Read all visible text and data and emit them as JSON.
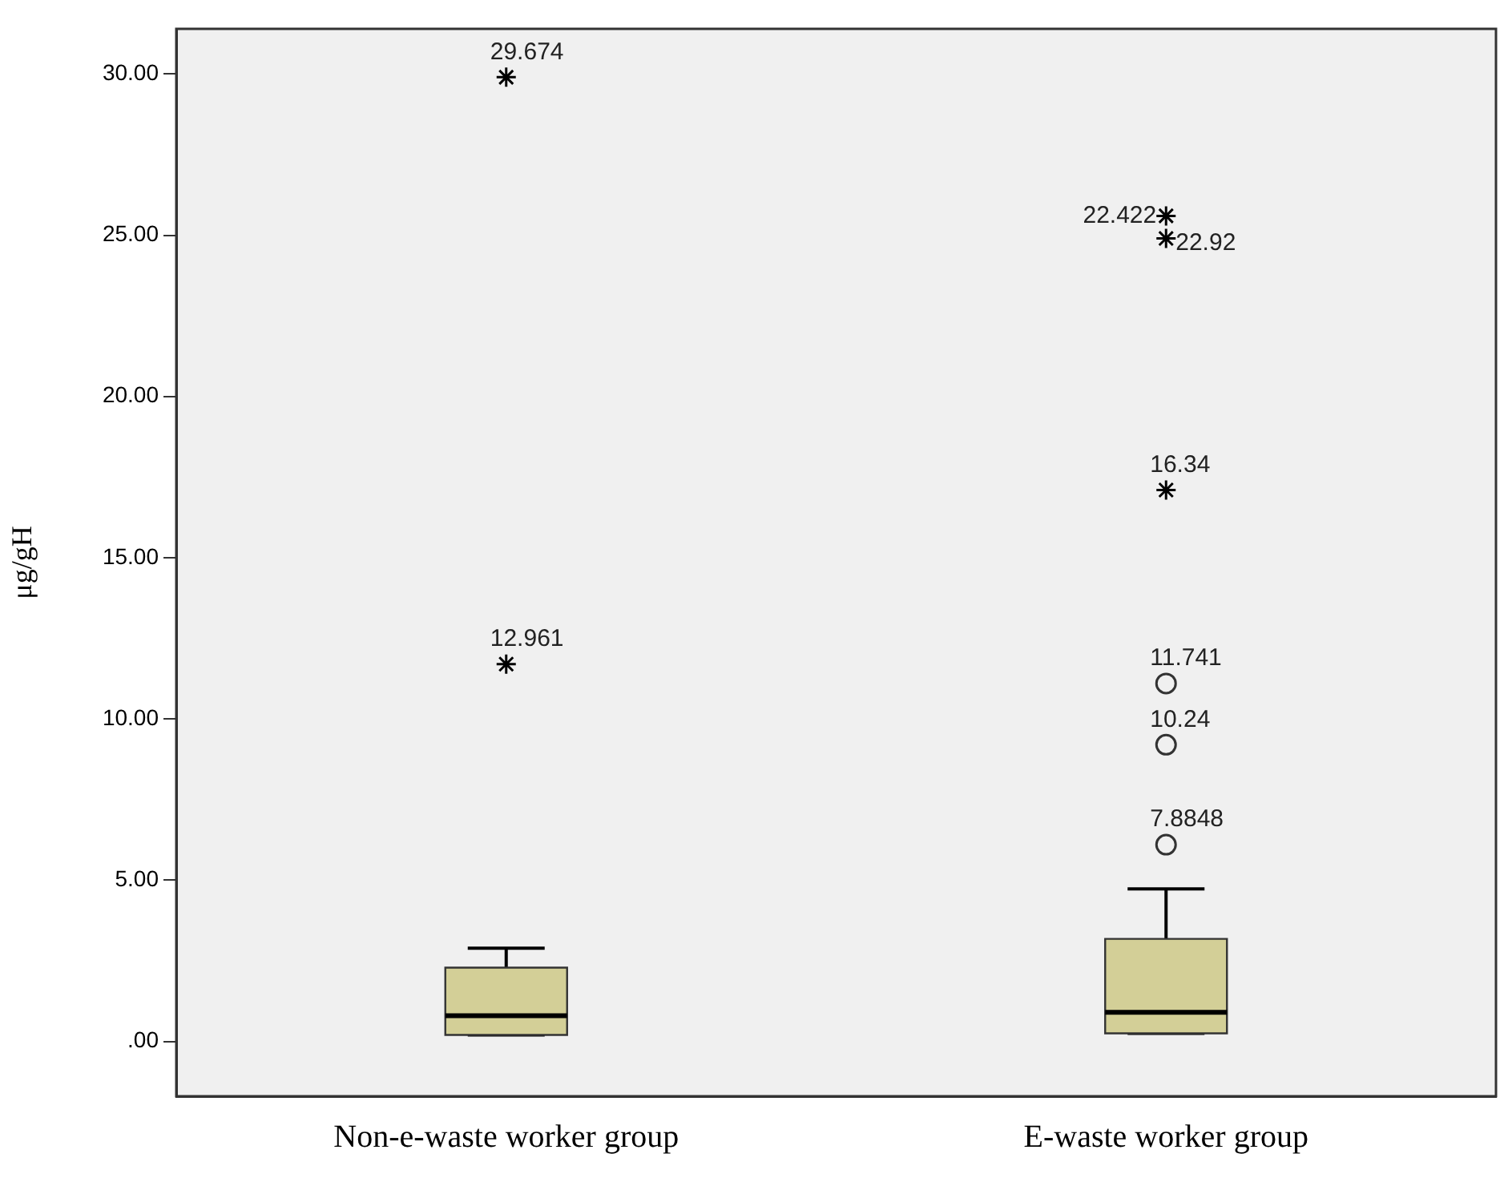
{
  "chart_data": {
    "type": "box",
    "ylabel": "μg/gH",
    "categories": [
      "Non-e-waste worker group",
      "E-waste worker group"
    ],
    "color": "#d3cf97",
    "boxes": [
      {
        "low": 0.2,
        "q1": 0.2,
        "median": 0.8,
        "q3": 2.29,
        "high": 2.89
      },
      {
        "low": 0.25,
        "q1": 0.25,
        "median": 0.9,
        "q3": 3.18,
        "high": 4.73
      }
    ],
    "series": [
      {
        "type": "scatter",
        "marker": "circle",
        "color": "#333333",
        "x": [
          "E-waste worker group",
          "E-waste worker group",
          "E-waste worker group"
        ],
        "values": [
          6.1,
          9.2,
          11.1
        ]
      },
      {
        "type": "scatter",
        "marker": "cross",
        "color": "#000000",
        "x": [
          "Non-e-waste worker group",
          "Non-e-waste worker group",
          "E-waste worker group",
          "E-waste worker group",
          "E-waste worker group"
        ],
        "values": [
          29.9,
          11.7,
          17.1,
          24.9,
          25.6
        ]
      }
    ],
    "ylim": [
      -1.7,
      31.4
    ],
    "yticks": [
      {
        "value": 0,
        "label": ".00"
      },
      {
        "value": 5,
        "label": "5.00"
      },
      {
        "value": 10,
        "label": "10.00"
      },
      {
        "value": 15,
        "label": "15.00"
      },
      {
        "value": 20,
        "label": "20.00"
      },
      {
        "value": 25,
        "label": "25.00"
      },
      {
        "value": 30,
        "label": "30.00"
      }
    ],
    "grid": false,
    "legend": false,
    "annotations": [
      {
        "text": "29.674",
        "x": "Non-e-waste worker group",
        "y": 29.9
      },
      {
        "text": "12.961",
        "x": "Non-e-waste worker group",
        "y": 11.7
      },
      {
        "text": "22.422",
        "x": "E-waste worker group",
        "y": 25.6
      },
      {
        "text": "22.92",
        "x": "E-waste worker group",
        "y": 24.9
      },
      {
        "text": "16.34",
        "x": "E-waste worker group",
        "y": 17.1
      },
      {
        "text": "11.741",
        "x": "E-waste worker group",
        "y": 11.1
      },
      {
        "text": "10.24",
        "x": "E-waste worker group",
        "y": 9.2
      },
      {
        "text": "7.8848",
        "x": "E-waste worker group",
        "y": 6.1
      }
    ]
  }
}
